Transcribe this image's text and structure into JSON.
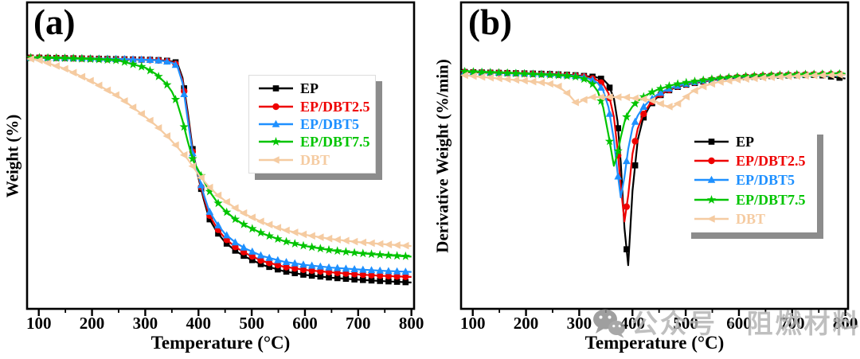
{
  "figure": {
    "watermark": {
      "icon": "wechat-icon",
      "text": "公众号 · 阻燃材料"
    }
  },
  "chart_data": [
    {
      "id": "a",
      "type": "line",
      "panel_label": "(a)",
      "xlabel": "Temperature (°C)",
      "ylabel": "Weight (%)",
      "xticks": [
        100,
        200,
        300,
        400,
        500,
        600,
        700,
        800
      ],
      "x_minor_ticks": [
        150,
        250,
        350,
        450,
        550,
        650,
        750
      ],
      "xlim": [
        78,
        805
      ],
      "ylim": [
        0,
        122
      ],
      "y_tick_labels_shown": false,
      "grid": false,
      "legend_position": "upper right inside",
      "x": [
        85,
        100,
        150,
        200,
        250,
        300,
        320,
        340,
        350,
        360,
        370,
        380,
        390,
        400,
        410,
        420,
        435,
        450,
        470,
        490,
        520,
        560,
        600,
        650,
        700,
        750,
        800
      ],
      "series": [
        {
          "name": "EP",
          "color": "#000000",
          "marker": "square",
          "y": [
            100,
            100,
            99.8,
            99.6,
            99.4,
            99.2,
            99.1,
            98.8,
            98.5,
            98,
            92,
            78,
            62,
            52,
            43.5,
            36,
            30.5,
            26.5,
            23,
            20.5,
            17.5,
            15,
            13.5,
            12.4,
            11.6,
            11,
            10.5
          ]
        },
        {
          "name": "EP/DBT2.5",
          "color": "#ee0000",
          "marker": "circle",
          "y": [
            100,
            100,
            99.8,
            99.6,
            99.3,
            99.1,
            99,
            98.6,
            98.2,
            97.2,
            91,
            76.5,
            61,
            52.5,
            44.5,
            37.5,
            32,
            28,
            24.5,
            22,
            19,
            16.8,
            15.5,
            14.5,
            13.7,
            13.1,
            12.7
          ]
        },
        {
          "name": "EP/DBT5",
          "color": "#1e90ff",
          "marker": "triangle-up",
          "y": [
            100,
            100,
            99.9,
            99.7,
            99.5,
            99.2,
            99,
            98.5,
            98,
            96.8,
            90,
            75,
            60.5,
            53,
            45.5,
            39,
            33.8,
            29.8,
            26.3,
            23.8,
            21,
            18.8,
            17.5,
            16.4,
            15.7,
            15.1,
            14.7
          ]
        },
        {
          "name": "EP/DBT7.5",
          "color": "#00c400",
          "marker": "star",
          "y": [
            100,
            100,
            99.8,
            99.4,
            98.9,
            96,
            93.5,
            89.5,
            86.5,
            82,
            75,
            66.5,
            59,
            55,
            51,
            47,
            42.5,
            39,
            35.5,
            33,
            30,
            27,
            25,
            23.3,
            22.2,
            21.4,
            20.8
          ]
        },
        {
          "name": "DBT",
          "color": "#f5cba1",
          "marker": "triangle-left",
          "y": [
            99.5,
            99,
            95.5,
            90.5,
            84.5,
            76.5,
            73,
            69,
            66.8,
            64.5,
            62,
            59.5,
            56.5,
            53.5,
            51,
            48.5,
            45.5,
            43,
            40,
            37.5,
            34.5,
            31.5,
            29.5,
            27.8,
            26.6,
            25.7,
            25
          ]
        }
      ]
    },
    {
      "id": "b",
      "type": "line",
      "panel_label": "(b)",
      "xlabel": "Temperature (°C)",
      "ylabel": "Derivative Weight (%/min)",
      "xticks": [
        100,
        200,
        300,
        400,
        500,
        600,
        700,
        800
      ],
      "x_minor_ticks": [
        150,
        250,
        350,
        450,
        550,
        650,
        750
      ],
      "xlim": [
        78,
        805
      ],
      "ylim": [
        -25.7,
        7.3
      ],
      "y_tick_labels_shown": false,
      "grid": false,
      "legend_position": "center right inside",
      "x": [
        85,
        120,
        160,
        200,
        240,
        260,
        280,
        295,
        305,
        315,
        325,
        335,
        345,
        355,
        365,
        372,
        378,
        385,
        392,
        400,
        410,
        420,
        432,
        445,
        460,
        475,
        490,
        510,
        535,
        560,
        600,
        650,
        700,
        750,
        800
      ],
      "series": [
        {
          "name": "EP",
          "color": "#000000",
          "marker": "square",
          "peak_temp": 392,
          "y": [
            -0.2,
            -0.25,
            -0.3,
            -0.35,
            -0.4,
            -0.45,
            -0.5,
            -0.55,
            -0.6,
            -0.65,
            -0.7,
            -0.8,
            -1,
            -1.6,
            -3,
            -5.5,
            -10,
            -17,
            -21,
            -13,
            -7.5,
            -5.2,
            -3.9,
            -3,
            -2.4,
            -2,
            -1.7,
            -1.45,
            -1.2,
            -1,
            -0.8,
            -0.65,
            -0.55,
            -0.5,
            -0.9
          ]
        },
        {
          "name": "EP/DBT2.5",
          "color": "#ee0000",
          "marker": "circle",
          "peak_temp": 385,
          "y": [
            -0.2,
            -0.25,
            -0.3,
            -0.38,
            -0.45,
            -0.5,
            -0.55,
            -0.6,
            -0.65,
            -0.75,
            -0.9,
            -1.1,
            -1.5,
            -2.5,
            -5,
            -8.5,
            -12.5,
            -16.3,
            -13.5,
            -9,
            -6.3,
            -4.8,
            -3.7,
            -2.9,
            -2.35,
            -1.95,
            -1.65,
            -1.4,
            -1.15,
            -0.95,
            -0.75,
            -0.6,
            -0.5,
            -0.45,
            -0.4
          ]
        },
        {
          "name": "EP/DBT5",
          "color": "#1e90ff",
          "marker": "triangle-up",
          "peak_temp": 378,
          "y": [
            -0.15,
            -0.2,
            -0.28,
            -0.35,
            -0.42,
            -0.48,
            -0.55,
            -0.62,
            -0.7,
            -0.85,
            -1.05,
            -1.4,
            -2.2,
            -4,
            -7.5,
            -11,
            -13.7,
            -11.5,
            -8.5,
            -6.2,
            -4.9,
            -4,
            -3.3,
            -2.7,
            -2.2,
            -1.85,
            -1.6,
            -1.35,
            -1.1,
            -0.9,
            -0.72,
            -0.58,
            -0.48,
            -0.42,
            -0.38
          ]
        },
        {
          "name": "EP/DBT7.5",
          "color": "#00c400",
          "marker": "star",
          "peak_temp": 365,
          "y": [
            -0.15,
            -0.22,
            -0.3,
            -0.4,
            -0.5,
            -0.55,
            -0.62,
            -0.72,
            -0.85,
            -1.1,
            -1.5,
            -2.3,
            -4,
            -7,
            -10.3,
            -9,
            -7.2,
            -5.6,
            -4.6,
            -3.9,
            -3.3,
            -2.9,
            -2.5,
            -2.15,
            -1.85,
            -1.6,
            -1.42,
            -1.25,
            -1.05,
            -0.88,
            -0.7,
            -0.56,
            -0.47,
            -0.42,
            -0.38
          ]
        },
        {
          "name": "DBT",
          "color": "#f5cba1",
          "marker": "triangle-left",
          "peak_temp": 295,
          "y": [
            -0.55,
            -0.75,
            -0.95,
            -1.15,
            -1.4,
            -1.7,
            -2.6,
            -3.6,
            -3.3,
            -3,
            -2.9,
            -2.9,
            -2.9,
            -2.9,
            -2.9,
            -2.9,
            -2.9,
            -2.9,
            -2.95,
            -3,
            -3.05,
            -3.1,
            -3.2,
            -3.4,
            -3.8,
            -4,
            -3.4,
            -2.4,
            -1.7,
            -1.3,
            -1,
            -0.8,
            -0.65,
            -0.55,
            -0.5
          ]
        }
      ]
    }
  ]
}
